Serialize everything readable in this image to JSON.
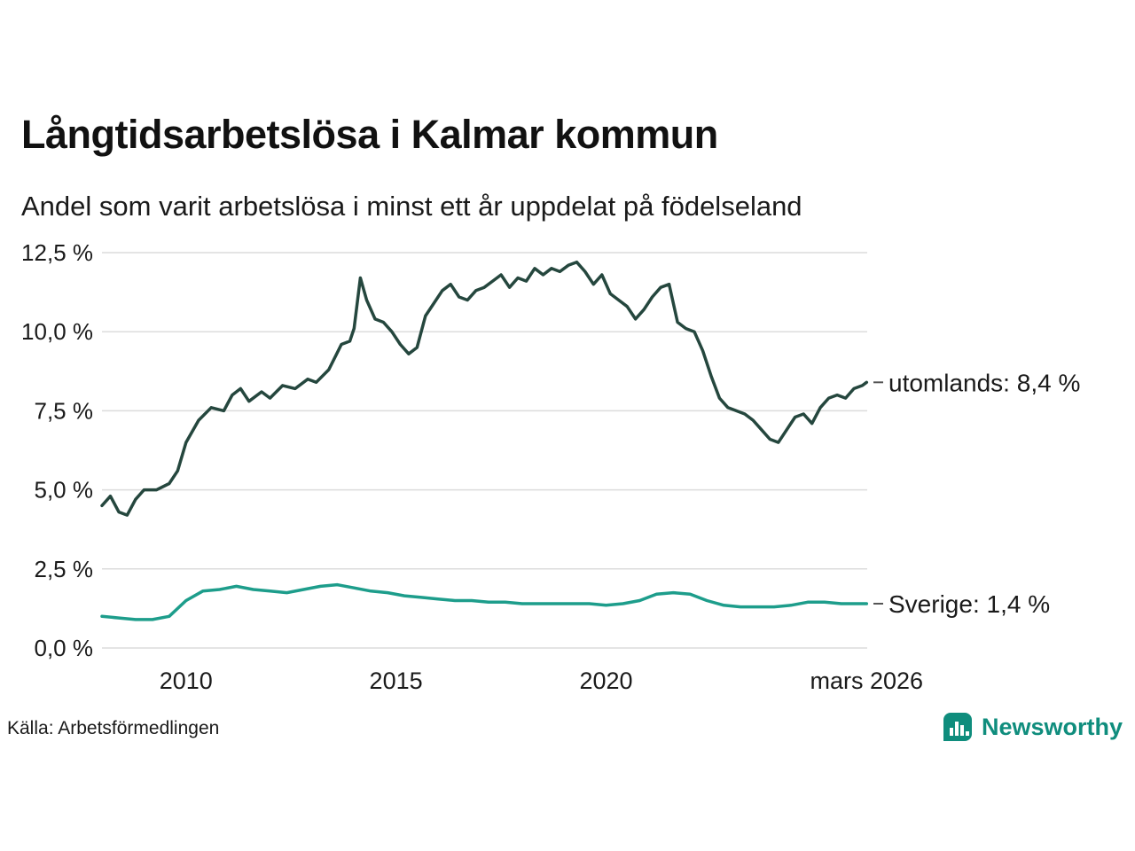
{
  "chart_data": {
    "type": "line",
    "title": "Långtidsarbetslösa i Kalmar kommun",
    "subtitle": "Andel som varit arbetslösa i minst ett år uppdelat på födelseland",
    "xlim": [
      2008.0,
      2026.3
    ],
    "ylim": [
      0,
      12.5
    ],
    "grid": "horizontal",
    "legend_position": "right-end-labels",
    "yticks": [
      {
        "value": 0,
        "label": "0,0 %"
      },
      {
        "value": 2.5,
        "label": "2,5 %"
      },
      {
        "value": 5,
        "label": "5,0 %"
      },
      {
        "value": 7.5,
        "label": "7,5 %"
      },
      {
        "value": 10,
        "label": "10,0 %"
      },
      {
        "value": 12.5,
        "label": "12,5 %"
      }
    ],
    "xticks": [
      {
        "value": 2010,
        "label": "2010"
      },
      {
        "value": 2015,
        "label": "2015"
      },
      {
        "value": 2020,
        "label": "2020"
      },
      {
        "value": 2026.2,
        "label": "mars 2026"
      }
    ],
    "series": [
      {
        "name": "utomlands",
        "color": "#25473e",
        "stroke_width": 3.5,
        "end_label": "utomlands: 8,4 %",
        "end_value": "8,4 %",
        "x": [
          2008.0,
          2008.2,
          2008.4,
          2008.6,
          2008.8,
          2009.0,
          2009.3,
          2009.6,
          2009.8,
          2010.0,
          2010.3,
          2010.6,
          2010.9,
          2011.1,
          2011.3,
          2011.5,
          2011.8,
          2012.0,
          2012.3,
          2012.6,
          2012.9,
          2013.1,
          2013.4,
          2013.7,
          2013.9,
          2014.0,
          2014.15,
          2014.3,
          2014.5,
          2014.7,
          2014.9,
          2015.1,
          2015.3,
          2015.5,
          2015.7,
          2015.9,
          2016.1,
          2016.3,
          2016.5,
          2016.7,
          2016.9,
          2017.1,
          2017.3,
          2017.5,
          2017.7,
          2017.9,
          2018.1,
          2018.3,
          2018.5,
          2018.7,
          2018.9,
          2019.1,
          2019.3,
          2019.5,
          2019.7,
          2019.9,
          2020.1,
          2020.3,
          2020.5,
          2020.7,
          2020.9,
          2021.1,
          2021.3,
          2021.5,
          2021.7,
          2021.9,
          2022.1,
          2022.3,
          2022.5,
          2022.7,
          2022.9,
          2023.1,
          2023.3,
          2023.5,
          2023.7,
          2023.9,
          2024.1,
          2024.3,
          2024.5,
          2024.7,
          2024.9,
          2025.1,
          2025.3,
          2025.5,
          2025.7,
          2025.9,
          2026.1,
          2026.2
        ],
        "values": [
          4.5,
          4.8,
          4.3,
          4.2,
          4.7,
          5.0,
          5.0,
          5.2,
          5.6,
          6.5,
          7.2,
          7.6,
          7.5,
          8.0,
          8.2,
          7.8,
          8.1,
          7.9,
          8.3,
          8.2,
          8.5,
          8.4,
          8.8,
          9.6,
          9.7,
          10.1,
          11.7,
          11.0,
          10.4,
          10.3,
          10.0,
          9.6,
          9.3,
          9.5,
          10.5,
          10.9,
          11.3,
          11.5,
          11.1,
          11.0,
          11.3,
          11.4,
          11.6,
          11.8,
          11.4,
          11.7,
          11.6,
          12.0,
          11.8,
          12.0,
          11.9,
          12.1,
          12.2,
          11.9,
          11.5,
          11.8,
          11.2,
          11.0,
          10.8,
          10.4,
          10.7,
          11.1,
          11.4,
          11.5,
          10.3,
          10.1,
          10.0,
          9.4,
          8.6,
          7.9,
          7.6,
          7.5,
          7.4,
          7.2,
          6.9,
          6.6,
          6.5,
          6.9,
          7.3,
          7.4,
          7.1,
          7.6,
          7.9,
          8.0,
          7.9,
          8.2,
          8.3,
          8.4
        ]
      },
      {
        "name": "Sverige",
        "color": "#1d9d8b",
        "stroke_width": 3.5,
        "end_label": "Sverige: 1,4 %",
        "end_value": "1,4 %",
        "x": [
          2008.0,
          2008.4,
          2008.8,
          2009.2,
          2009.6,
          2010.0,
          2010.4,
          2010.8,
          2011.2,
          2011.6,
          2012.0,
          2012.4,
          2012.8,
          2013.2,
          2013.6,
          2014.0,
          2014.4,
          2014.8,
          2015.2,
          2015.6,
          2016.0,
          2016.4,
          2016.8,
          2017.2,
          2017.6,
          2018.0,
          2018.4,
          2018.8,
          2019.2,
          2019.6,
          2020.0,
          2020.4,
          2020.8,
          2021.2,
          2021.6,
          2022.0,
          2022.4,
          2022.8,
          2023.2,
          2023.6,
          2024.0,
          2024.4,
          2024.8,
          2025.2,
          2025.6,
          2026.0,
          2026.2
        ],
        "values": [
          1.0,
          0.95,
          0.9,
          0.9,
          1.0,
          1.5,
          1.8,
          1.85,
          1.95,
          1.85,
          1.8,
          1.75,
          1.85,
          1.95,
          2.0,
          1.9,
          1.8,
          1.75,
          1.65,
          1.6,
          1.55,
          1.5,
          1.5,
          1.45,
          1.45,
          1.4,
          1.4,
          1.4,
          1.4,
          1.4,
          1.35,
          1.4,
          1.5,
          1.7,
          1.75,
          1.7,
          1.5,
          1.35,
          1.3,
          1.3,
          1.3,
          1.35,
          1.45,
          1.45,
          1.4,
          1.4,
          1.4
        ]
      }
    ],
    "colors": {
      "grid": "#dcdcdc",
      "tick_text": "#1a1a1a",
      "end_label_text": "#1a1a1a",
      "end_label_dash": "#555555"
    }
  },
  "footer": {
    "source": "Källa: Arbetsförmedlingen",
    "brand": "Newsworthy",
    "brand_color": "#0f8d7d"
  }
}
